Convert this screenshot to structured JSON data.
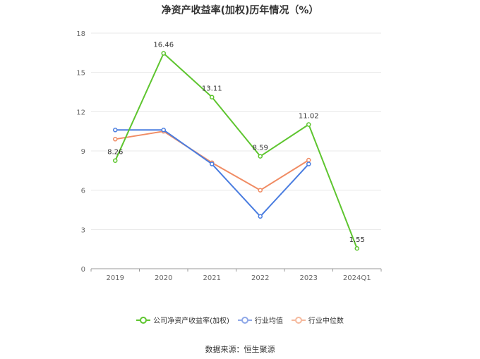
{
  "chart_data": {
    "type": "line",
    "title": "净资产收益率(加权)历年情况（%）",
    "categories": [
      "2019",
      "2020",
      "2021",
      "2022",
      "2023",
      "2024Q1"
    ],
    "ylim": [
      0,
      18
    ],
    "yticks": [
      "0",
      "3",
      "6",
      "9",
      "12",
      "15",
      "18"
    ],
    "grid": true,
    "legend_position": "bottom",
    "series": [
      {
        "name": "公司净资产收益率(加权)",
        "color": "#5ec52f",
        "values": [
          8.26,
          16.46,
          13.11,
          8.59,
          11.02,
          1.55
        ],
        "labels": [
          "8.26",
          "16.46",
          "13.11",
          "8.59",
          "11.02",
          "1.55"
        ]
      },
      {
        "name": "行业均值",
        "color": "#4a7de0",
        "values": [
          10.6,
          10.6,
          8.0,
          4.0,
          8.0,
          null
        ]
      },
      {
        "name": "行业中位数",
        "color": "#f08c64",
        "values": [
          9.9,
          10.5,
          8.1,
          6.0,
          8.3,
          null
        ]
      }
    ]
  },
  "legend": {
    "items": [
      {
        "label": "公司净资产收益率(加权)",
        "color": "#5ec52f"
      },
      {
        "label": "行业均值",
        "color": "#8fa8e8"
      },
      {
        "label": "行业中位数",
        "color": "#f5b99d"
      }
    ]
  },
  "source": "数据来源：恒生聚源"
}
